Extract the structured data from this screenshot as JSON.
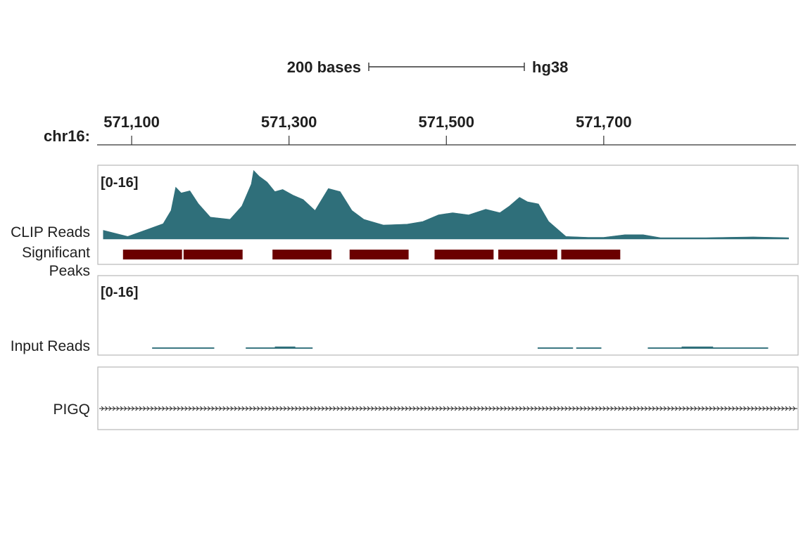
{
  "scale_bar": {
    "label": "200 bases",
    "assembly": "hg38",
    "bases": 200
  },
  "ruler": {
    "chrom_label": "chr16:"
  },
  "colors": {
    "coverage": "#2f6f7a",
    "peaks": "#6b0000",
    "peak_label": "#6b0000",
    "frame": "#b8b8b8",
    "text": "#1f1f1f"
  },
  "chart_data": {
    "type": "area",
    "title": "",
    "x_axis": {
      "label": "chr16",
      "range": [
        571057,
        571947
      ],
      "ticks": [
        571100,
        571300,
        571500,
        571700
      ],
      "tick_labels": [
        "571,100",
        "571,300",
        "571,500",
        "571,700"
      ]
    },
    "tracks": [
      {
        "name": "CLIP Reads",
        "type": "coverage",
        "range_label": "[0-16]",
        "ylim": [
          0,
          16
        ],
        "points": [
          [
            571064,
            2.0
          ],
          [
            571095,
            0.6
          ],
          [
            571120,
            2.2
          ],
          [
            571140,
            3.5
          ],
          [
            571150,
            6.5
          ],
          [
            571156,
            11.8
          ],
          [
            571163,
            10.5
          ],
          [
            571174,
            11.0
          ],
          [
            571185,
            8.0
          ],
          [
            571200,
            5.0
          ],
          [
            571225,
            4.5
          ],
          [
            571240,
            7.5
          ],
          [
            571252,
            12.5
          ],
          [
            571255,
            15.6
          ],
          [
            571262,
            14.3
          ],
          [
            571272,
            13.0
          ],
          [
            571282,
            10.8
          ],
          [
            571292,
            11.3
          ],
          [
            571305,
            10.0
          ],
          [
            571318,
            9.0
          ],
          [
            571333,
            6.5
          ],
          [
            571350,
            11.5
          ],
          [
            571365,
            10.8
          ],
          [
            571380,
            6.5
          ],
          [
            571395,
            4.5
          ],
          [
            571420,
            3.2
          ],
          [
            571450,
            3.4
          ],
          [
            571470,
            4.0
          ],
          [
            571490,
            5.5
          ],
          [
            571508,
            6.0
          ],
          [
            571528,
            5.5
          ],
          [
            571550,
            6.8
          ],
          [
            571568,
            6.0
          ],
          [
            571580,
            7.5
          ],
          [
            571593,
            9.5
          ],
          [
            571603,
            8.5
          ],
          [
            571617,
            8.0
          ],
          [
            571630,
            4.0
          ],
          [
            571652,
            0.6
          ],
          [
            571680,
            0.4
          ],
          [
            571700,
            0.4
          ],
          [
            571727,
            1.0
          ],
          [
            571750,
            1.0
          ],
          [
            571772,
            0.3
          ],
          [
            571806,
            0.3
          ],
          [
            571830,
            0.3
          ],
          [
            571855,
            0.4
          ],
          [
            571890,
            0.5
          ],
          [
            571935,
            0.3
          ]
        ]
      },
      {
        "name": "Significant Peaks",
        "type": "intervals",
        "intervals": [
          [
            571089,
            571164
          ],
          [
            571166,
            571241
          ],
          [
            571279,
            571354
          ],
          [
            571377,
            571452
          ],
          [
            571485,
            571560
          ],
          [
            571566,
            571641
          ],
          [
            571646,
            571721
          ]
        ]
      },
      {
        "name": "Input Reads",
        "type": "coverage",
        "range_label": "[0-16]",
        "ylim": [
          0,
          16
        ],
        "segments": [
          [
            571126,
            571205,
            0.3
          ],
          [
            571245,
            571330,
            0.3
          ],
          [
            571282,
            571308,
            0.5
          ],
          [
            571616,
            571661,
            0.3
          ],
          [
            571665,
            571697,
            0.3
          ],
          [
            571756,
            571909,
            0.3
          ],
          [
            571799,
            571839,
            0.5
          ]
        ]
      },
      {
        "name": "PIGQ",
        "type": "gene",
        "strand": "+",
        "start": 571057,
        "end": 571947
      }
    ]
  }
}
